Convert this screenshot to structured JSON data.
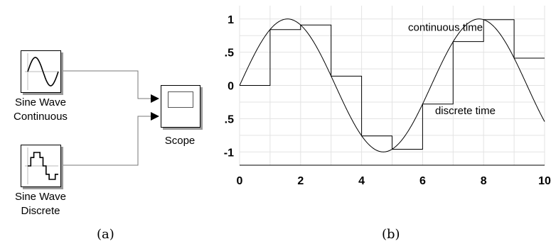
{
  "panel_a": {
    "caption": "(a)",
    "blocks": {
      "sine_continuous": {
        "line1": "Sine Wave",
        "line2": "Continuous"
      },
      "sine_discrete": {
        "line1": "Sine Wave",
        "line2": "Discrete"
      },
      "scope": {
        "label": "Scope"
      }
    }
  },
  "panel_b": {
    "caption": "(b)"
  },
  "chart_data": {
    "type": "line",
    "x_ticks": [
      "0",
      "2",
      "4",
      "6",
      "8",
      "10"
    ],
    "y_ticks": [
      "1",
      ".5",
      "0",
      ".5",
      "-1"
    ],
    "xlim": [
      0,
      10
    ],
    "ylim": [
      -1.2,
      1.2
    ],
    "grid": true,
    "annotations": [
      {
        "text": "continuous time",
        "x": 6.75,
        "y": 0.82
      },
      {
        "text": "discrete time",
        "x": 7.4,
        "y": -0.43
      }
    ],
    "series": [
      {
        "kind": "continuous",
        "function": "sin(x)",
        "x_range": [
          0,
          10
        ]
      },
      {
        "kind": "discrete",
        "x": [
          0,
          1,
          2,
          3,
          4,
          5,
          6,
          7,
          8,
          9
        ],
        "values": [
          0,
          0.84,
          0.91,
          0.14,
          -0.76,
          -0.96,
          -0.28,
          0.66,
          0.99,
          0.41
        ]
      }
    ]
  }
}
